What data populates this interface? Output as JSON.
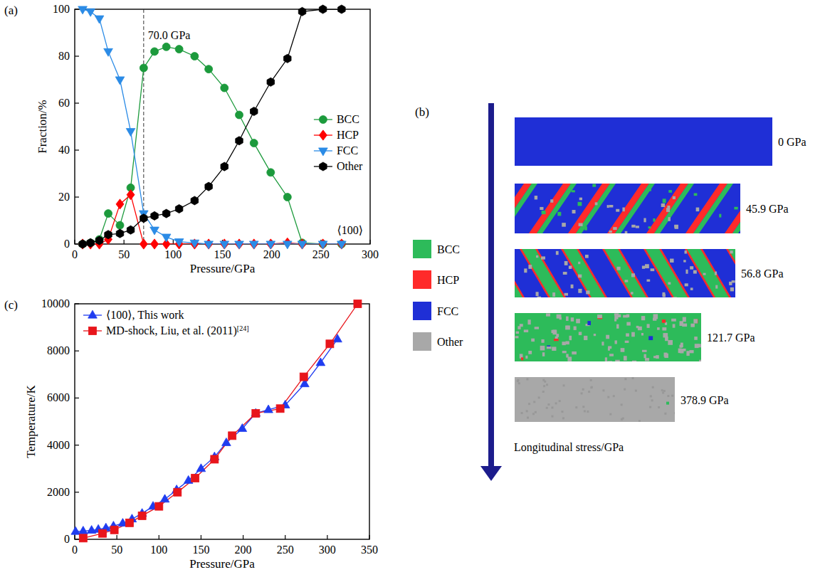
{
  "chart_data": [
    {
      "type": "line",
      "panel_label": "(a)",
      "xlabel": "Pressure/GPa",
      "ylabel": "Fraction/%",
      "xlim": [
        0,
        300
      ],
      "ylim": [
        0,
        100
      ],
      "xticks": [
        0,
        50,
        100,
        150,
        200,
        250,
        300
      ],
      "yticks": [
        0,
        20,
        40,
        60,
        80,
        100
      ],
      "legend": "right",
      "x": [
        8,
        16,
        25,
        34,
        45.9,
        56.8,
        70,
        81,
        93,
        106,
        121.7,
        136,
        152,
        167,
        182,
        199,
        216,
        231,
        252,
        271
      ],
      "series": [
        {
          "name": "BCC",
          "color": "#1c9a3c",
          "marker": "circle",
          "values": [
            0,
            0.5,
            2,
            13,
            8,
            24,
            75,
            82,
            84,
            83,
            80,
            74.5,
            66.5,
            55,
            43,
            30.5,
            20,
            0.5,
            0,
            0
          ]
        },
        {
          "name": "HCP",
          "color": "#ff0000",
          "marker": "diamond",
          "values": [
            0,
            0,
            0,
            2,
            17,
            21,
            0,
            0,
            0,
            0,
            0,
            0,
            0,
            0,
            0,
            0,
            0.5,
            0,
            0,
            0
          ]
        },
        {
          "name": "FCC",
          "color": "#2b8be6",
          "marker": "triangle-down",
          "values": [
            100,
            99,
            96,
            82,
            70,
            48,
            13,
            6,
            3,
            1,
            0.5,
            0,
            0,
            0,
            0,
            0,
            0,
            0,
            0,
            0
          ]
        },
        {
          "name": "Other",
          "color": "#000000",
          "marker": "hexagon",
          "values": [
            0,
            0.5,
            1.5,
            4,
            4.5,
            6,
            11,
            12,
            13,
            15,
            18.5,
            24.5,
            33,
            44,
            56.5,
            69,
            79,
            99,
            100,
            100
          ]
        }
      ],
      "annotations": [
        {
          "text": "70.0 GPa",
          "x": 70,
          "line_style": "dashed"
        },
        {
          "text": "⟨100⟩"
        }
      ]
    },
    {
      "type": "line",
      "panel_label": "(c)",
      "xlabel": "Pressure/GPa",
      "ylabel": "Temperature/K",
      "xlim": [
        0,
        350
      ],
      "ylim": [
        0,
        10000
      ],
      "xticks": [
        0,
        50,
        100,
        150,
        200,
        250,
        300,
        350
      ],
      "yticks": [
        0,
        2000,
        4000,
        6000,
        8000,
        10000
      ],
      "legend": "upper left",
      "series": [
        {
          "name": "⟨100⟩, This work",
          "color": "#1f3cf0",
          "marker": "triangle-up",
          "x": [
            1,
            10,
            20,
            28,
            37,
            46,
            57,
            68,
            80,
            93,
            107,
            121,
            135,
            150,
            166,
            180,
            199,
            215,
            230,
            250,
            273,
            292,
            312
          ],
          "values": [
            330,
            350,
            380,
            420,
            480,
            560,
            680,
            860,
            1100,
            1400,
            1700,
            2100,
            2500,
            3000,
            3500,
            4100,
            4700,
            5350,
            5500,
            5700,
            6600,
            7500,
            8500
          ]
        },
        {
          "name": "MD-shock, Liu, et al. (2011)[24]",
          "color": "#e8151b",
          "marker": "square",
          "x": [
            10,
            33,
            47,
            65,
            80,
            100,
            122,
            143,
            166,
            187,
            215,
            244,
            272,
            303,
            336
          ],
          "values": [
            50,
            250,
            400,
            700,
            1000,
            1400,
            2000,
            2600,
            3400,
            4400,
            5350,
            5550,
            6900,
            8300,
            10000
          ]
        }
      ]
    }
  ],
  "panel_b": {
    "panel_label": "(b)",
    "axis_label": "Longitudinal stress/GPa",
    "legend": [
      {
        "name": "BCC",
        "color": "#2dbb5a"
      },
      {
        "name": "HCP",
        "color": "#ff2a2a"
      },
      {
        "name": "FCC",
        "color": "#1f2fd6"
      },
      {
        "name": "Other",
        "color": "#a8a8a8"
      }
    ],
    "snapshots": [
      {
        "value": 0,
        "label": "0 GPa"
      },
      {
        "value": 45.9,
        "label": "45.9 GPa"
      },
      {
        "value": 56.8,
        "label": "56.8 GPa"
      },
      {
        "value": 121.7,
        "label": "121.7 GPa"
      },
      {
        "value": 378.9,
        "label": "378.9 GPa"
      }
    ]
  }
}
